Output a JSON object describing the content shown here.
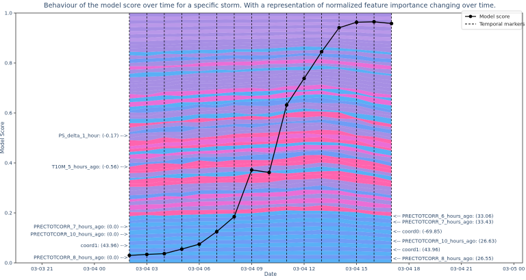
{
  "chart_data": {
    "type": "line",
    "title": "Behaviour of the model score over time for a specific storm. With a representation of normalized feature importance changing over time.",
    "xlabel": "Date",
    "ylabel": "Model Score",
    "xlim": [
      "2024-03-03T19:30",
      "2024-03-05T00:30"
    ],
    "ylim": [
      0,
      1.0
    ],
    "x_ticks": [
      {
        "t": "2024-03-03T21:00",
        "label": "03-03 21"
      },
      {
        "t": "2024-03-04T00:00",
        "label": "03-04 00"
      },
      {
        "t": "2024-03-04T03:00",
        "label": "03-04 03"
      },
      {
        "t": "2024-03-04T06:00",
        "label": "03-04 06"
      },
      {
        "t": "2024-03-04T09:00",
        "label": "03-04 09"
      },
      {
        "t": "2024-03-04T12:00",
        "label": "03-04 12"
      },
      {
        "t": "2024-03-04T15:00",
        "label": "03-04 15"
      },
      {
        "t": "2024-03-04T18:00",
        "label": "03-04 18"
      },
      {
        "t": "2024-03-04T21:00",
        "label": "03-04 21"
      },
      {
        "t": "2024-03-05T00:00",
        "label": "03-05 00"
      }
    ],
    "y_ticks": [
      "0.0",
      "0.2",
      "0.4",
      "0.6",
      "0.8",
      "1.0"
    ],
    "series": [
      {
        "name": "Model score",
        "color": "#000000",
        "x": [
          "2024-03-04T02:00",
          "2024-03-04T03:00",
          "2024-03-04T04:00",
          "2024-03-04T05:00",
          "2024-03-04T06:00",
          "2024-03-04T07:00",
          "2024-03-04T08:00",
          "2024-03-04T09:00",
          "2024-03-04T10:00",
          "2024-03-04T11:00",
          "2024-03-04T12:00",
          "2024-03-04T13:00",
          "2024-03-04T14:00",
          "2024-03-04T15:00",
          "2024-03-04T16:00",
          "2024-03-04T17:00"
        ],
        "y": [
          0.03,
          0.034,
          0.037,
          0.055,
          0.075,
          0.125,
          0.185,
          0.372,
          0.362,
          0.632,
          0.738,
          0.845,
          0.941,
          0.963,
          0.965,
          0.958
        ]
      }
    ],
    "temporal_markers": {
      "name": "Temporal markers",
      "x": [
        "2024-03-04T02:00",
        "2024-03-04T03:00",
        "2024-03-04T04:00",
        "2024-03-04T05:00",
        "2024-03-04T06:00",
        "2024-03-04T07:00",
        "2024-03-04T08:00",
        "2024-03-04T09:00",
        "2024-03-04T10:00",
        "2024-03-04T11:00",
        "2024-03-04T12:00",
        "2024-03-04T13:00",
        "2024-03-04T14:00",
        "2024-03-04T15:00",
        "2024-03-04T16:00",
        "2024-03-04T17:00"
      ]
    },
    "feature_band": {
      "x_start": "2024-03-04T02:00",
      "x_end": "2024-03-04T17:00",
      "colors": [
        "#42a5f5",
        "#ff4fa3",
        "#9b7fe0",
        "#5b8ff5",
        "#e85ad0",
        "#b08ae6"
      ]
    },
    "left_annotations": [
      {
        "text": "PS_delta_1_hour: (-0.17) -->",
        "y": 0.51
      },
      {
        "text": "T10M_5_hours_ago: (-0.56) -->",
        "y": 0.385
      },
      {
        "text": "PRECTOTCORR_7_hours_ago: (0.0) -->",
        "y": 0.145
      },
      {
        "text": "PRECTOTCORR_10_hours_ago: (0.0) -->",
        "y": 0.115
      },
      {
        "text": "coord1: (43.96) -->",
        "y": 0.07
      },
      {
        "text": "PRECTOTCORR_8_hours_ago: (0.0) -->",
        "y": 0.022
      }
    ],
    "right_annotations": [
      {
        "text": "<-- PRECTOTCORR_6_hours_ago: (33.06)",
        "y": 0.188
      },
      {
        "text": "<-- PRECTOTCORR_7_hours_ago: (33.43)",
        "y": 0.164
      },
      {
        "text": "<-- coord0: (-69.85)",
        "y": 0.126
      },
      {
        "text": "<-- PRECTOTCORR_10_hours_ago: (26.63)",
        "y": 0.087
      },
      {
        "text": "<-- coord1: (43.96)",
        "y": 0.054
      },
      {
        "text": "<-- PRECTOTCORR_8_hours_ago: (26.55)",
        "y": 0.018
      }
    ],
    "legend": {
      "placement": "top-right",
      "entries": [
        "Model score",
        "Temporal markers"
      ]
    },
    "grid": false
  }
}
